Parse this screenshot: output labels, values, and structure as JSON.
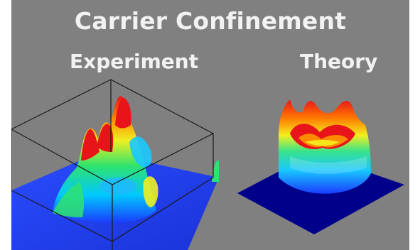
{
  "figure": {
    "title": "Carrier Confinement",
    "panels": [
      {
        "label": "Experiment"
      },
      {
        "label": "Theory"
      }
    ]
  },
  "colors": {
    "background": "#808080",
    "text": "#f2f2f2",
    "surface_low": "#1a3cff",
    "surface_mid": "#37e36a",
    "surface_high": "#e8141a",
    "base_plane": "#00008b"
  }
}
